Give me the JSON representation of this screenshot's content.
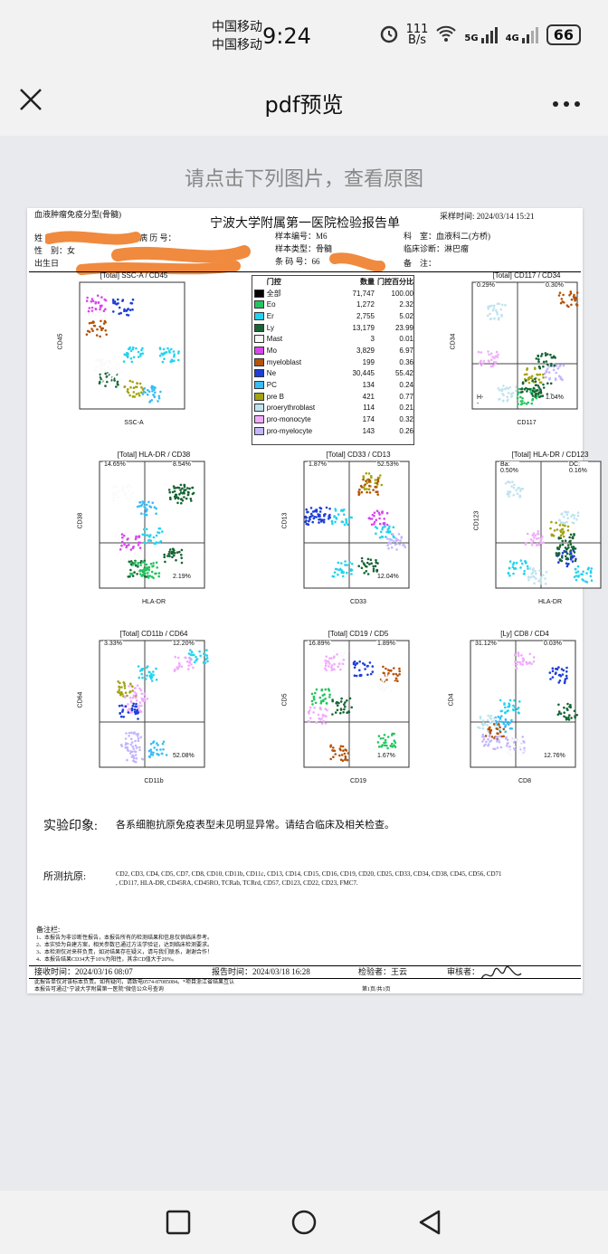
{
  "status_bar": {
    "carrier1": "中国移动",
    "carrier2": "中国移动",
    "time": "9:24",
    "net_speed_value": "111",
    "net_speed_unit": "B/s",
    "signal1": "5G",
    "signal2": "4G",
    "battery": "66"
  },
  "app_bar": {
    "title": "pdf预览",
    "close_icon": "close-icon",
    "more_icon": "more-icon"
  },
  "hint": "请点击下列图片，查看原图",
  "report": {
    "type": "血液肿瘤免疫分型(骨髓)",
    "hospital": "宁波大学附属第一医院检验报告单",
    "sample_time_label": "采样时间:",
    "sample_time": "2024/03/14 15:21",
    "name_label": "姓",
    "record_label": "病 历 号：",
    "sample_no_label": "样本编号：",
    "sample_no": "M6",
    "dept_label": "科　室：",
    "dept": "血液科二(方桥)",
    "sex_label": "性　别：",
    "sex": "女",
    "sample_type_label": "样本类型：",
    "sample_type": "骨髓",
    "diagnosis_label": "临床诊断：",
    "diagnosis": "淋巴瘤",
    "dob_label": "出生日",
    "barcode_label": "条 码 号：",
    "barcode_partial": "66",
    "note_label": "备　注：",
    "gate_table": {
      "headers": [
        "门控",
        "数量",
        "门控百分比"
      ],
      "rows": [
        {
          "name": "全部",
          "count": "71,747",
          "pct": "100.00",
          "color": "#000000"
        },
        {
          "name": "Eo",
          "count": "1,272",
          "pct": "2.32",
          "color": "#22c55e"
        },
        {
          "name": "Er",
          "count": "2,755",
          "pct": "5.02",
          "color": "#22d3ee"
        },
        {
          "name": "Ly",
          "count": "13,179",
          "pct": "23.99",
          "color": "#166534"
        },
        {
          "name": "Mast",
          "count": "3",
          "pct": "0.01",
          "color": "#f9fafb"
        },
        {
          "name": "Mo",
          "count": "3,829",
          "pct": "6.97",
          "color": "#d946ef"
        },
        {
          "name": "myeloblast",
          "count": "199",
          "pct": "0.36",
          "color": "#b45309"
        },
        {
          "name": "Ne",
          "count": "30,445",
          "pct": "55.42",
          "color": "#1d3ed8"
        },
        {
          "name": "PC",
          "count": "134",
          "pct": "0.24",
          "color": "#38bdf8"
        },
        {
          "name": "pre B",
          "count": "421",
          "pct": "0.77",
          "color": "#a3a30f"
        },
        {
          "name": "proerythroblast",
          "count": "114",
          "pct": "0.21",
          "color": "#bfe3ef"
        },
        {
          "name": "pro-monocyte",
          "count": "174",
          "pct": "0.32",
          "color": "#f0abfc"
        },
        {
          "name": "pro-myelocyte",
          "count": "143",
          "pct": "0.26",
          "color": "#c4b5fd"
        }
      ]
    },
    "plots": [
      {
        "title": "[Total] SSC-A / CD45",
        "xlabel": "SSC-A",
        "ylabel": "CD45",
        "q": [
          "",
          "",
          "",
          ""
        ]
      },
      {
        "title": "[Total] CD117 / CD34",
        "xlabel": "CD117",
        "ylabel": "CD34",
        "q": [
          "0.29%",
          "0.30%",
          "H--",
          "1.04%"
        ]
      },
      {
        "title": "[Total] HLA-DR / CD38",
        "xlabel": "HLA-DR",
        "ylabel": "CD38",
        "q": [
          "14.65%",
          "8.54%",
          "",
          "2.19%"
        ]
      },
      {
        "title": "[Total] CD33 / CD13",
        "xlabel": "CD33",
        "ylabel": "CD13",
        "q": [
          "1.87%",
          "52.53%",
          "",
          "12.04%"
        ]
      },
      {
        "title": "[Total] HLA-DR / CD123",
        "xlabel": "HLA-DR",
        "ylabel": "CD123",
        "q": [
          "Ba: 0.50%",
          "DC: 0.16%",
          "",
          ""
        ]
      },
      {
        "title": "[Total] CD11b / CD64",
        "xlabel": "CD11b",
        "ylabel": "CD64",
        "q": [
          "3.33%",
          "12.20%",
          "",
          "52.08%"
        ]
      },
      {
        "title": "[Total] CD19 / CD5",
        "xlabel": "CD19",
        "ylabel": "CD5",
        "q": [
          "16.89%",
          "1.89%",
          "",
          "1.67%"
        ]
      },
      {
        "title": "[Ly] CD8 / CD4",
        "xlabel": "CD8",
        "ylabel": "CD4",
        "q": [
          "31.12%",
          "0.03%",
          "",
          "12.76%"
        ]
      }
    ],
    "impression_label": "实验印象:",
    "impression": "各系细胞抗原免疫表型未见明显异常。请结合临床及相关检查。",
    "antigens_label": "所测抗原:",
    "antigens_line1": "CD2, CD3, CD4, CD5, CD7, CD8, CD10, CD11b, CD11c, CD13, CD14, CD15, CD16, CD19, CD20, CD25, CD33, CD34, CD38, CD45, CD56, CD71",
    "antigens_line2": ", CD117, HLA-DR, CD45RA, CD45RO, TCRab, TCRrd, CD57, CD123, CD22, CD23, FMC7.",
    "notes_label": "备注栏:",
    "notes": [
      "1、本报告为非诊断性报告，本报告所有的检测结果和信息仅供临床参考。",
      "2、本实验为自建方案，相关参数已通过方法学验证，达到临床检测要求。",
      "3、本检测仅对来样负责，如对结果存在疑义，请与我们联系，谢谢合作！",
      "4、本报告结果CD34大于10%为阳性，其余CD值大于20%。"
    ],
    "recv_label": "接收时间：",
    "recv_time": "2024/03/16 08:07",
    "report_label": "报告时间：",
    "report_time": "2024/03/18 16:28",
    "checker_label": "检验者：",
    "checker": "王云",
    "reviewer_label": "审核者：",
    "footer1": "此报告单仅对该标本负责。如有疑问，请致电0574-87085084。*项目浙江省结果互认",
    "footer2": "本报告可通过\"宁波大学附属第一医院\"微信公众号查询",
    "page": "第1页/共1页"
  }
}
